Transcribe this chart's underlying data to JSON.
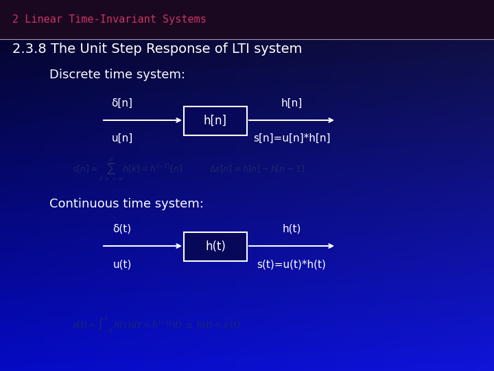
{
  "title_bar_text": "2 Linear Time-Invariant Systems",
  "title_bar_color": "#cc3366",
  "main_title": "2.3.8 The Unit Step Response of LTI system",
  "discrete_label": "Discrete time system:",
  "continuous_label": "Continuous time system:",
  "box1_label": "h[n]",
  "box2_label": "h(t)",
  "discrete_in_top": "δ[n]",
  "discrete_in_bot": "u[n]",
  "discrete_out_top": "h[n]",
  "discrete_out_bot": "s[n]=u[n]*h[n]",
  "continuous_in_top": "δ(t)",
  "continuous_in_bot": "u(t)",
  "continuous_out_top": "h(t)",
  "continuous_out_bot": "s(t)=u(t)*h(t)"
}
